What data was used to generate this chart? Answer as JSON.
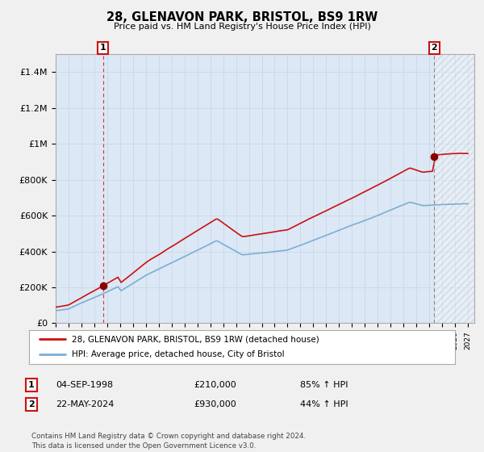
{
  "title": "28, GLENAVON PARK, BRISTOL, BS9 1RW",
  "subtitle": "Price paid vs. HM Land Registry's House Price Index (HPI)",
  "ylim": [
    0,
    1500000
  ],
  "yticks": [
    0,
    200000,
    400000,
    600000,
    800000,
    1000000,
    1200000,
    1400000
  ],
  "ytick_labels": [
    "£0",
    "£200K",
    "£400K",
    "£600K",
    "£800K",
    "£1M",
    "£1.2M",
    "£1.4M"
  ],
  "sale1": {
    "date_num": 1998.67,
    "price": 210000,
    "label": "1"
  },
  "sale2": {
    "date_num": 2024.39,
    "price": 930000,
    "label": "2"
  },
  "legend_line1": "28, GLENAVON PARK, BRISTOL, BS9 1RW (detached house)",
  "legend_line2": "HPI: Average price, detached house, City of Bristol",
  "table_rows": [
    [
      "1",
      "04-SEP-1998",
      "£210,000",
      "85% ↑ HPI"
    ],
    [
      "2",
      "22-MAY-2024",
      "£930,000",
      "44% ↑ HPI"
    ]
  ],
  "footer": "Contains HM Land Registry data © Crown copyright and database right 2024.\nThis data is licensed under the Open Government Licence v3.0.",
  "hpi_color": "#7bafd4",
  "price_color": "#cc1111",
  "background_color": "#f0f0f0",
  "plot_bg_color": "#dce8f5",
  "grid_color": "#c8d8e8",
  "xmin": 1995.0,
  "xmax": 2027.5,
  "sale1_vline_color": "#dd3333",
  "sale2_vline_color": "#888888"
}
